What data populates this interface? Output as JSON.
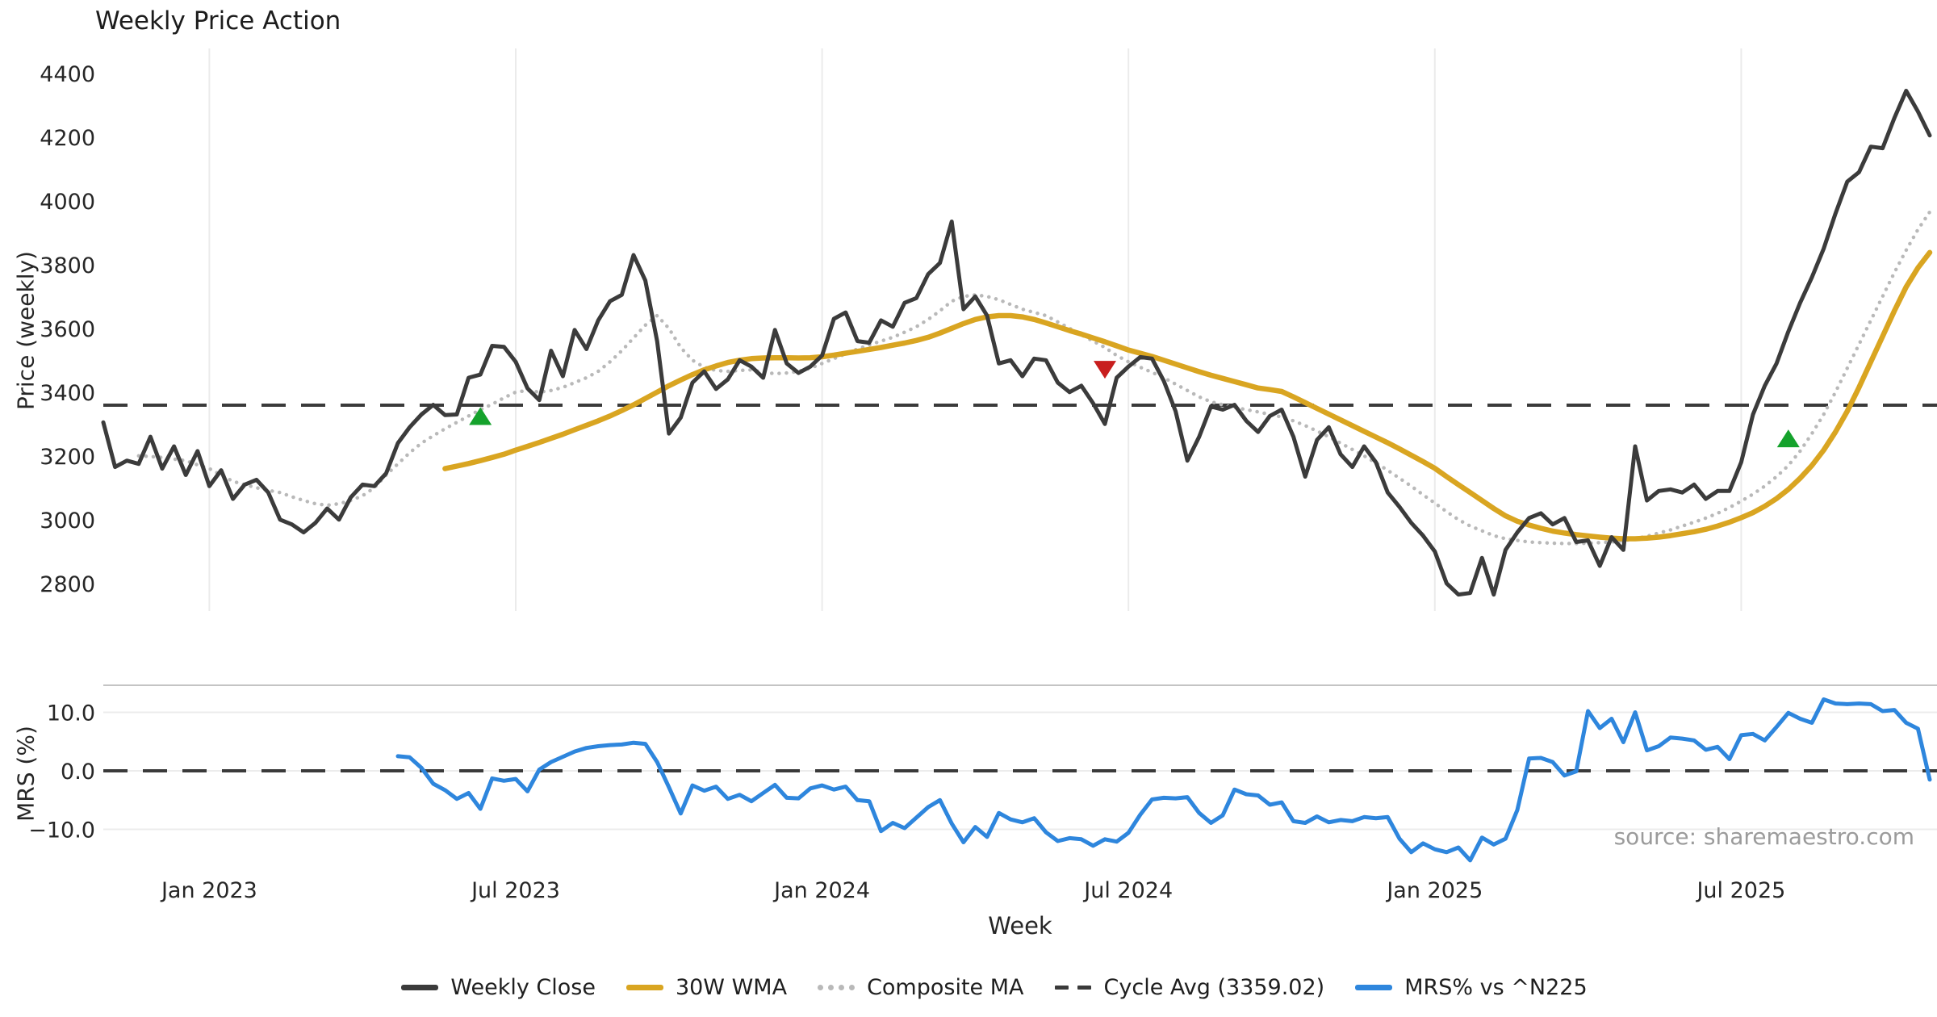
{
  "title": "Weekly Price Action",
  "xlabel": "Week",
  "source_note": "source: sharemaestro.com",
  "price_panel": {
    "ylabel": "Price (weekly)"
  },
  "mrs_panel": {
    "ylabel": "MRS (%)"
  },
  "legend": [
    {
      "label": "Weekly Close",
      "color": "#3b3b3b",
      "style": "solid"
    },
    {
      "label": "30W WMA",
      "color": "#d9a521",
      "style": "solid"
    },
    {
      "label": "Composite MA",
      "color": "#b9b9b9",
      "style": "dotted"
    },
    {
      "label": "Cycle Avg (3359.02)",
      "color": "#3a3a3a",
      "style": "dashed"
    },
    {
      "label": "MRS% vs ^N225",
      "color": "#2e86dd",
      "style": "solid"
    }
  ],
  "chart_data": {
    "type": "line",
    "title": "Weekly Price Action",
    "xlabel": "Week",
    "n_points": 156,
    "x_axis": {
      "unit": "week",
      "ticks": [
        {
          "label": "Jan 2023",
          "index": 9
        },
        {
          "label": "Jul 2023",
          "index": 35
        },
        {
          "label": "Jan 2024",
          "index": 61
        },
        {
          "label": "Jul 2024",
          "index": 87
        },
        {
          "label": "Jan 2025",
          "index": 113
        },
        {
          "label": "Jul 2025",
          "index": 139
        }
      ]
    },
    "panels": [
      {
        "id": "price",
        "ylabel": "Price (weekly)",
        "ylim": [
          2700,
          4480
        ],
        "yticks": [
          2800,
          3000,
          3200,
          3400,
          3600,
          3800,
          4000,
          4200,
          4400
        ],
        "reference_line": {
          "name": "Cycle Avg",
          "value": 3359.02,
          "style": "dashed",
          "color": "#3a3a3a"
        },
        "markers": [
          {
            "type": "buy",
            "shape": "triangle-up",
            "color": "#15a22c",
            "index": 32,
            "price": 3325
          },
          {
            "type": "sell",
            "shape": "triangle-down",
            "color": "#c81e1e",
            "index": 85,
            "price": 3470
          },
          {
            "type": "buy",
            "shape": "triangle-up",
            "color": "#15a22c",
            "index": 143,
            "price": 3255
          }
        ],
        "series": [
          {
            "name": "Weekly Close",
            "color": "#3b3b3b",
            "style": "solid",
            "width": 5,
            "values": [
              3305,
              3165,
              3185,
              3175,
              3260,
              3160,
              3230,
              3140,
              3215,
              3105,
              3155,
              3065,
              3110,
              3125,
              3085,
              3000,
              2985,
              2960,
              2990,
              3035,
              3000,
              3070,
              3110,
              3105,
              3145,
              3240,
              3290,
              3330,
              3360,
              3328,
              3330,
              3445,
              3455,
              3545,
              3542,
              3495,
              3412,
              3375,
              3530,
              3450,
              3595,
              3535,
              3625,
              3685,
              3705,
              3830,
              3750,
              3560,
              3270,
              3320,
              3430,
              3465,
              3410,
              3440,
              3500,
              3480,
              3445,
              3595,
              3490,
              3460,
              3480,
              3515,
              3630,
              3650,
              3560,
              3555,
              3625,
              3605,
              3680,
              3695,
              3770,
              3805,
              3935,
              3660,
              3700,
              3640,
              3490,
              3500,
              3450,
              3505,
              3500,
              3430,
              3400,
              3420,
              3365,
              3300,
              3445,
              3480,
              3510,
              3505,
              3435,
              3340,
              3185,
              3260,
              3355,
              3345,
              3360,
              3310,
              3275,
              3325,
              3345,
              3260,
              3135,
              3250,
              3290,
              3205,
              3165,
              3230,
              3180,
              3085,
              3040,
              2990,
              2950,
              2900,
              2800,
              2765,
              2770,
              2880,
              2765,
              2905,
              2960,
              3005,
              3020,
              2985,
              3005,
              2930,
              2935,
              2855,
              2945,
              2905,
              3230,
              3060,
              3090,
              3095,
              3085,
              3110,
              3065,
              3090,
              3090,
              3180,
              3330,
              3420,
              3490,
              3590,
              3680,
              3760,
              3850,
              3960,
              4060,
              4090,
              4170,
              4165,
              4260,
              4345,
              4280,
              4205
            ]
          },
          {
            "name": "30W WMA",
            "color": "#d9a521",
            "style": "solid",
            "width": 6.5,
            "values": [
              null,
              null,
              null,
              null,
              null,
              null,
              null,
              null,
              null,
              null,
              null,
              null,
              null,
              null,
              null,
              null,
              null,
              null,
              null,
              null,
              null,
              null,
              null,
              null,
              null,
              null,
              null,
              null,
              null,
              3160,
              3168,
              3176,
              3185,
              3195,
              3205,
              3218,
              3230,
              3242,
              3255,
              3268,
              3282,
              3296,
              3310,
              3325,
              3342,
              3360,
              3380,
              3400,
              3420,
              3438,
              3455,
              3470,
              3482,
              3493,
              3500,
              3505,
              3507,
              3508,
              3508,
              3507,
              3508,
              3511,
              3516,
              3522,
              3528,
              3534,
              3540,
              3547,
              3554,
              3562,
              3572,
              3585,
              3600,
              3615,
              3628,
              3636,
              3640,
              3640,
              3636,
              3628,
              3617,
              3605,
              3593,
              3582,
              3570,
              3558,
              3545,
              3532,
              3522,
              3512,
              3500,
              3488,
              3476,
              3464,
              3453,
              3443,
              3433,
              3423,
              3413,
              3408,
              3402,
              3385,
              3367,
              3349,
              3331,
              3313,
              3295,
              3277,
              3259,
              3241,
              3222,
              3202,
              3182,
              3161,
              3135,
              3110,
              3085,
              3060,
              3035,
              3012,
              2995,
              2983,
              2973,
              2964,
              2958,
              2953,
              2949,
              2945,
              2942,
              2940,
              2940,
              2942,
              2945,
              2950,
              2956,
              2962,
              2970,
              2980,
              2992,
              3006,
              3022,
              3042,
              3066,
              3095,
              3130,
              3170,
              3218,
              3275,
              3340,
              3415,
              3495,
              3575,
              3655,
              3730,
              3790,
              3838
            ]
          },
          {
            "name": "Composite MA",
            "color": "#b9b9b9",
            "style": "dotted",
            "width": 4.5,
            "values": [
              null,
              null,
              null,
              3200,
              3198,
              3195,
              3190,
              3185,
              3172,
              3160,
              3140,
              3120,
              3110,
              3100,
              3092,
              3085,
              3072,
              3060,
              3050,
              3045,
              3050,
              3060,
              3075,
              3100,
              3140,
              3175,
              3210,
              3240,
              3263,
              3285,
              3305,
              3325,
              3345,
              3362,
              3382,
              3400,
              3405,
              3400,
              3405,
              3415,
              3430,
              3445,
              3465,
              3495,
              3530,
              3570,
              3610,
              3640,
              3600,
              3540,
              3500,
              3478,
              3468,
              3465,
              3468,
              3470,
              3462,
              3458,
              3460,
              3465,
              3475,
              3490,
              3505,
              3520,
              3535,
              3548,
              3560,
              3572,
              3588,
              3605,
              3628,
              3655,
              3685,
              3700,
              3705,
              3700,
              3690,
              3675,
              3660,
              3650,
              3640,
              3620,
              3600,
              3580,
              3560,
              3540,
              3515,
              3495,
              3478,
              3462,
              3445,
              3425,
              3405,
              3385,
              3370,
              3360,
              3352,
              3345,
              3338,
              3330,
              3322,
              3310,
              3295,
              3278,
              3260,
              3240,
              3220,
              3200,
              3178,
              3155,
              3130,
              3105,
              3078,
              3052,
              3025,
              3000,
              2980,
              2965,
              2950,
              2940,
              2935,
              2930,
              2928,
              2926,
              2925,
              2925,
              2926,
              2928,
              2930,
              2934,
              2940,
              2948,
              2958,
              2968,
              2980,
              2992,
              3005,
              3020,
              3038,
              3058,
              3080,
              3105,
              3135,
              3170,
              3215,
              3270,
              3330,
              3400,
              3475,
              3550,
              3625,
              3700,
              3775,
              3845,
              3910,
              3965
            ]
          }
        ]
      },
      {
        "id": "mrs",
        "ylabel": "MRS (%)",
        "ylim": [
          -16.5,
          14.5
        ],
        "yticks": [
          10.0,
          0.0,
          -10.0
        ],
        "ytick_labels": [
          "10.0",
          "0.0",
          "−10.0"
        ],
        "reference_line": {
          "name": "zero",
          "value": 0,
          "style": "dashed",
          "color": "#3a3a3a"
        },
        "series": [
          {
            "name": "MRS% vs ^N225",
            "color": "#2e86dd",
            "style": "solid",
            "width": 5,
            "values": [
              null,
              null,
              null,
              null,
              null,
              null,
              null,
              null,
              null,
              null,
              null,
              null,
              null,
              null,
              null,
              null,
              null,
              null,
              null,
              null,
              null,
              null,
              null,
              null,
              null,
              2.5,
              2.3,
              0.5,
              -2.2,
              -3.3,
              -4.8,
              -3.8,
              -6.5,
              -1.3,
              -1.7,
              -1.4,
              -3.5,
              0.2,
              1.5,
              2.4,
              3.3,
              3.9,
              4.2,
              4.4,
              4.5,
              4.8,
              4.6,
              1.5,
              -2.8,
              -7.3,
              -2.5,
              -3.4,
              -2.7,
              -4.8,
              -4.1,
              -5.2,
              -3.8,
              -2.4,
              -4.6,
              -4.7,
              -3.0,
              -2.5,
              -3.2,
              -2.7,
              -5.0,
              -5.2,
              -10.3,
              -8.9,
              -9.8,
              -8.0,
              -6.2,
              -5.0,
              -9.0,
              -12.2,
              -9.6,
              -11.3,
              -7.2,
              -8.3,
              -8.8,
              -8.1,
              -10.5,
              -12.0,
              -11.5,
              -11.7,
              -12.8,
              -11.7,
              -12.1,
              -10.6,
              -7.5,
              -4.9,
              -4.6,
              -4.7,
              -4.5,
              -7.2,
              -8.9,
              -7.6,
              -3.2,
              -4.0,
              -4.2,
              -5.8,
              -5.4,
              -8.6,
              -8.9,
              -7.8,
              -8.8,
              -8.4,
              -8.6,
              -7.9,
              -8.1,
              -7.9,
              -11.6,
              -13.9,
              -12.4,
              -13.4,
              -13.9,
              -13.1,
              -15.3,
              -11.4,
              -12.6,
              -11.6,
              -6.7,
              2.1,
              2.2,
              1.5,
              -0.8,
              -0.1,
              10.2,
              7.3,
              8.9,
              4.9,
              10.0,
              3.5,
              4.2,
              5.7,
              5.5,
              5.2,
              3.6,
              4.1,
              2.0,
              6.1,
              6.3,
              5.2,
              7.5,
              9.9,
              8.9,
              8.2,
              12.2,
              11.5,
              11.4,
              11.5,
              11.4,
              10.2,
              10.4,
              8.2,
              7.2,
              -1.5
            ]
          }
        ]
      }
    ],
    "legend_position": "bottom",
    "grid": {
      "vertical": true,
      "horizontal_mrs": true
    }
  }
}
